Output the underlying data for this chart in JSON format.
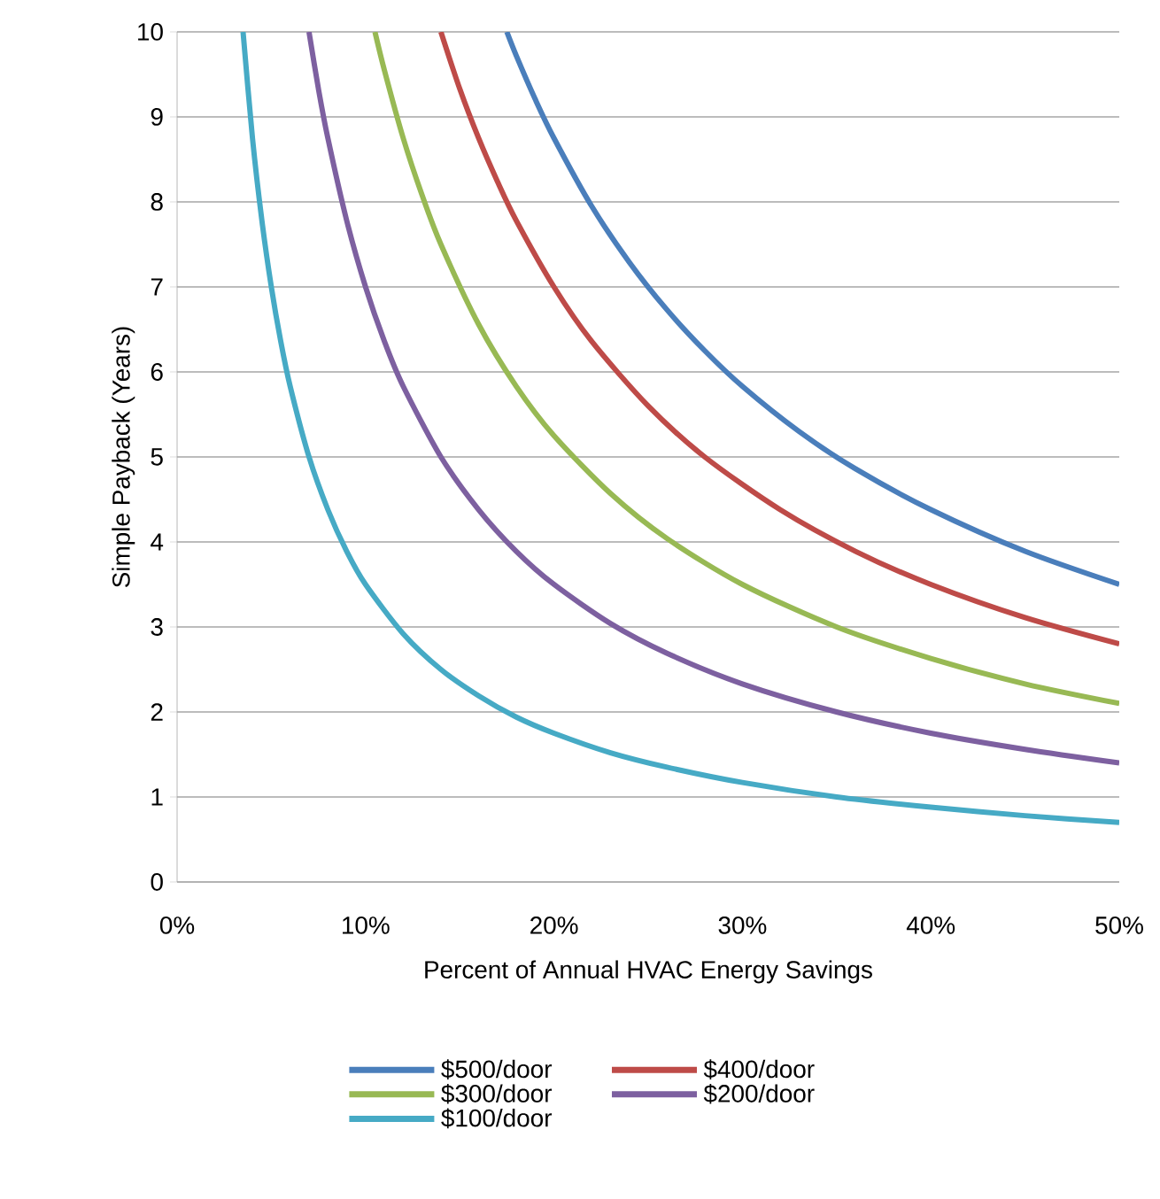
{
  "chart_data": {
    "type": "line",
    "xlabel": "Percent of Annual HVAC Energy Savings",
    "ylabel": "Simple Payback (Years)",
    "xlim": [
      0,
      50
    ],
    "ylim": [
      0,
      10
    ],
    "xticks": [
      {
        "value": 0,
        "label": "0%"
      },
      {
        "value": 10,
        "label": "10%"
      },
      {
        "value": 20,
        "label": "20%"
      },
      {
        "value": 30,
        "label": "30%"
      },
      {
        "value": 40,
        "label": "40%"
      },
      {
        "value": 50,
        "label": "50%"
      }
    ],
    "yticks": [
      0,
      1,
      2,
      3,
      4,
      5,
      6,
      7,
      8,
      9,
      10
    ],
    "grid": "y",
    "legend": "bottom",
    "line_style": "solid",
    "series": [
      {
        "name": "$500/door",
        "color": "#4a7ebb",
        "x": [
          17.5,
          18,
          19,
          20,
          22,
          24,
          26,
          28,
          30,
          33,
          36,
          40,
          45,
          50
        ],
        "values": [
          10,
          9.72,
          9.21,
          8.75,
          7.95,
          7.29,
          6.73,
          6.25,
          5.83,
          5.3,
          4.86,
          4.38,
          3.89,
          3.5
        ]
      },
      {
        "name": "$400/door",
        "color": "#be4b48",
        "x": [
          14,
          15,
          16,
          17,
          18,
          20,
          22,
          25,
          28,
          32,
          36,
          40,
          45,
          50
        ],
        "values": [
          10,
          9.33,
          8.75,
          8.24,
          7.78,
          7,
          6.36,
          5.6,
          5,
          4.38,
          3.89,
          3.5,
          3.11,
          2.8
        ]
      },
      {
        "name": "$300/door",
        "color": "#98b954",
        "x": [
          10.5,
          11,
          12,
          13,
          14,
          16,
          18,
          20,
          23,
          26,
          30,
          35,
          40,
          45,
          50
        ],
        "values": [
          10,
          9.55,
          8.75,
          8.08,
          7.5,
          6.56,
          5.83,
          5.25,
          4.57,
          4.04,
          3.5,
          3,
          2.63,
          2.33,
          2.1
        ]
      },
      {
        "name": "$200/door",
        "color": "#7d60a0",
        "x": [
          7,
          7.5,
          8,
          9,
          10,
          11,
          12,
          14,
          16,
          18,
          20,
          23,
          26,
          30,
          35,
          40,
          45,
          50
        ],
        "values": [
          10,
          9.33,
          8.75,
          7.78,
          7,
          6.36,
          5.83,
          5,
          4.38,
          3.89,
          3.5,
          3.04,
          2.69,
          2.33,
          2,
          1.75,
          1.56,
          1.4
        ]
      },
      {
        "name": "$100/door",
        "color": "#46aac5",
        "x": [
          3.5,
          4,
          4.5,
          5,
          5.5,
          6,
          7,
          8,
          9,
          10,
          12,
          14,
          16,
          18,
          20,
          23,
          26,
          30,
          35,
          40,
          45,
          50
        ],
        "values": [
          10,
          8.75,
          7.78,
          7,
          6.36,
          5.83,
          5,
          4.38,
          3.89,
          3.5,
          2.92,
          2.5,
          2.19,
          1.94,
          1.75,
          1.52,
          1.35,
          1.17,
          1,
          0.88,
          0.78,
          0.7
        ]
      }
    ]
  }
}
